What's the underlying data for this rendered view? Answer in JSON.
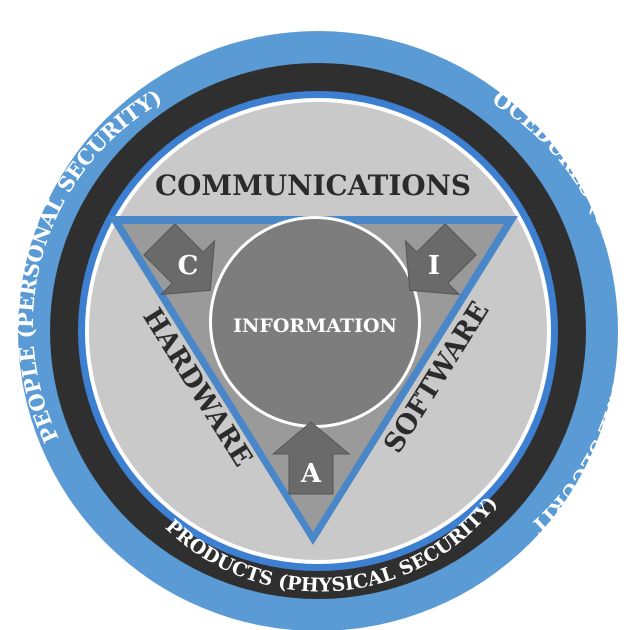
{
  "diagram": {
    "center_label": "INFORMATION",
    "top_label": "COMMUNICATIONS",
    "left_label": "HARDWARE",
    "right_label": "SOFTWARE",
    "arrows": {
      "confidentiality": "C",
      "integrity": "I",
      "availability": "A"
    },
    "rings": {
      "people": "PEOPLE (PERSONAL SECURITY)",
      "procedures": "PROCEDURES (ORGANIZATIONAL SECURITY)",
      "products": "PRODUCTS (PHYSICAL SECURITY)"
    },
    "colors": {
      "outer_blue": "#5b9bd5",
      "dark_ring": "#2f2f2f",
      "inner_blue": "#3d7fd0",
      "disc_gray": "#c9c9c9",
      "triangle_gray": "#9a9a9a",
      "center_gray": "#7d7d7d",
      "arrow_gray": "#6e6e6e"
    }
  }
}
